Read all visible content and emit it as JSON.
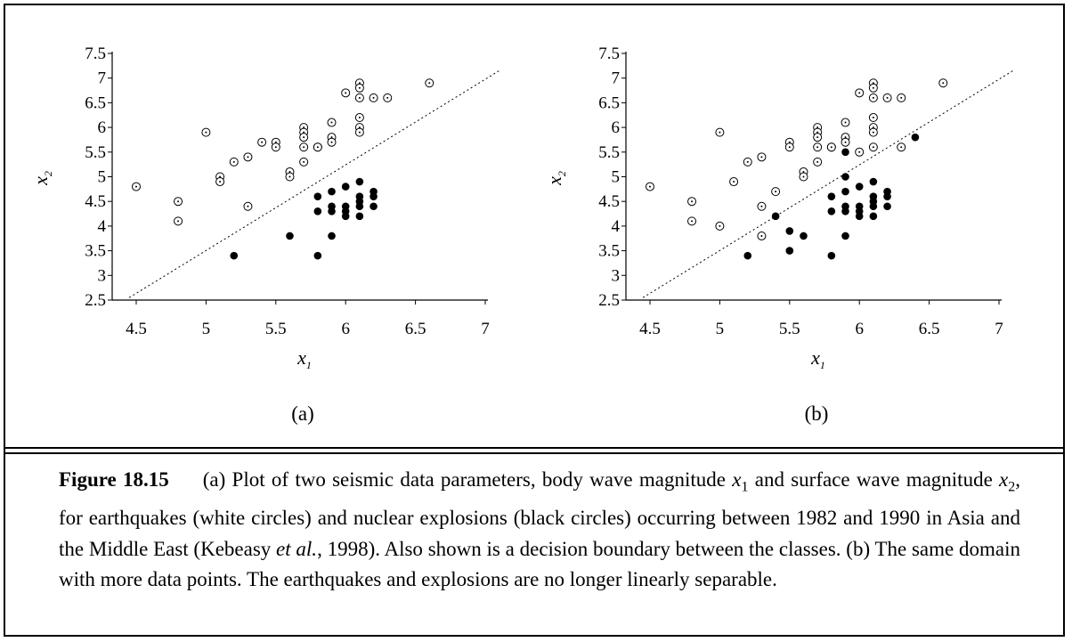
{
  "chart_data": [
    {
      "type": "scatter",
      "panel_label": "(a)",
      "xlim": [
        4.5,
        7
      ],
      "ylim": [
        2.5,
        7.5
      ],
      "xticks": [
        "4.5",
        "5",
        "5.5",
        "6",
        "6.5",
        "7"
      ],
      "yticks": [
        "2.5",
        "3",
        "3.5",
        "4",
        "4.5",
        "5",
        "5.5",
        "6",
        "6.5",
        "7",
        "7.5"
      ],
      "xlabel": "x",
      "xlabel_sub": "1",
      "ylabel": "x",
      "ylabel_sub": "2",
      "grid": false,
      "boundary": {
        "style": "dotted",
        "from": [
          4.45,
          2.55
        ],
        "to": [
          7.1,
          7.15
        ]
      },
      "series": [
        {
          "marker": "open-circle-dot",
          "points": [
            [
              4.5,
              4.8
            ],
            [
              4.8,
              4.5
            ],
            [
              4.8,
              4.1
            ],
            [
              5.0,
              5.9
            ],
            [
              5.1,
              5.0
            ],
            [
              5.1,
              4.9
            ],
            [
              5.2,
              5.3
            ],
            [
              5.3,
              5.4
            ],
            [
              5.3,
              4.4
            ],
            [
              5.4,
              5.7
            ],
            [
              5.5,
              5.7
            ],
            [
              5.5,
              5.6
            ],
            [
              5.6,
              5.1
            ],
            [
              5.6,
              5.0
            ],
            [
              5.7,
              6.0
            ],
            [
              5.7,
              5.9
            ],
            [
              5.7,
              5.8
            ],
            [
              5.7,
              5.6
            ],
            [
              5.7,
              5.3
            ],
            [
              5.8,
              5.6
            ],
            [
              5.8,
              5.6
            ],
            [
              5.9,
              6.1
            ],
            [
              5.9,
              5.8
            ],
            [
              5.9,
              5.7
            ],
            [
              6.0,
              6.7
            ],
            [
              6.1,
              6.9
            ],
            [
              6.1,
              6.8
            ],
            [
              6.1,
              6.6
            ],
            [
              6.1,
              6.2
            ],
            [
              6.1,
              6.0
            ],
            [
              6.1,
              5.9
            ],
            [
              6.2,
              6.6
            ],
            [
              6.3,
              6.6
            ],
            [
              6.6,
              6.9
            ]
          ]
        },
        {
          "marker": "filled-circle",
          "points": [
            [
              5.2,
              3.4
            ],
            [
              5.6,
              3.8
            ],
            [
              5.8,
              3.4
            ],
            [
              5.8,
              4.6
            ],
            [
              5.8,
              4.3
            ],
            [
              5.9,
              4.7
            ],
            [
              5.9,
              4.4
            ],
            [
              5.9,
              4.3
            ],
            [
              5.9,
              3.8
            ],
            [
              6.0,
              4.8
            ],
            [
              6.0,
              4.4
            ],
            [
              6.0,
              4.3
            ],
            [
              6.0,
              4.2
            ],
            [
              6.1,
              4.9
            ],
            [
              6.1,
              4.6
            ],
            [
              6.1,
              4.5
            ],
            [
              6.1,
              4.4
            ],
            [
              6.1,
              4.2
            ],
            [
              6.2,
              4.7
            ],
            [
              6.2,
              4.6
            ],
            [
              6.2,
              4.4
            ]
          ]
        }
      ]
    },
    {
      "type": "scatter",
      "panel_label": "(b)",
      "xlim": [
        4.5,
        7
      ],
      "ylim": [
        2.5,
        7.5
      ],
      "xticks": [
        "4.5",
        "5",
        "5.5",
        "6",
        "6.5",
        "7"
      ],
      "yticks": [
        "2.5",
        "3",
        "3.5",
        "4",
        "4.5",
        "5",
        "5.5",
        "6",
        "6.5",
        "7",
        "7.5"
      ],
      "xlabel": "x",
      "xlabel_sub": "1",
      "ylabel": "x",
      "ylabel_sub": "2",
      "grid": false,
      "boundary": {
        "style": "dotted",
        "from": [
          4.45,
          2.55
        ],
        "to": [
          7.1,
          7.15
        ]
      },
      "series": [
        {
          "marker": "open-circle-dot",
          "points": [
            [
              4.5,
              4.8
            ],
            [
              4.8,
              4.5
            ],
            [
              4.8,
              4.1
            ],
            [
              5.0,
              5.9
            ],
            [
              5.0,
              4.0
            ],
            [
              5.1,
              4.9
            ],
            [
              5.2,
              5.3
            ],
            [
              5.3,
              5.4
            ],
            [
              5.3,
              4.4
            ],
            [
              5.3,
              3.8
            ],
            [
              5.4,
              4.7
            ],
            [
              5.5,
              5.7
            ],
            [
              5.5,
              5.6
            ],
            [
              5.6,
              5.1
            ],
            [
              5.6,
              5.0
            ],
            [
              5.7,
              6.0
            ],
            [
              5.7,
              5.9
            ],
            [
              5.7,
              5.8
            ],
            [
              5.7,
              5.6
            ],
            [
              5.7,
              5.3
            ],
            [
              5.8,
              5.6
            ],
            [
              5.8,
              5.6
            ],
            [
              5.9,
              6.1
            ],
            [
              5.9,
              5.8
            ],
            [
              5.9,
              5.7
            ],
            [
              6.0,
              6.7
            ],
            [
              6.0,
              5.5
            ],
            [
              6.1,
              6.9
            ],
            [
              6.1,
              6.8
            ],
            [
              6.1,
              6.6
            ],
            [
              6.1,
              6.2
            ],
            [
              6.1,
              6.0
            ],
            [
              6.1,
              5.9
            ],
            [
              6.1,
              5.6
            ],
            [
              6.2,
              6.6
            ],
            [
              6.3,
              6.6
            ],
            [
              6.3,
              5.6
            ],
            [
              6.6,
              6.9
            ]
          ]
        },
        {
          "marker": "filled-circle",
          "points": [
            [
              5.2,
              3.4
            ],
            [
              5.4,
              4.2
            ],
            [
              5.5,
              3.9
            ],
            [
              5.5,
              3.5
            ],
            [
              5.6,
              3.8
            ],
            [
              5.8,
              3.4
            ],
            [
              5.8,
              4.6
            ],
            [
              5.8,
              4.3
            ],
            [
              5.9,
              5.5
            ],
            [
              5.9,
              5.0
            ],
            [
              5.9,
              4.7
            ],
            [
              5.9,
              4.4
            ],
            [
              5.9,
              4.3
            ],
            [
              5.9,
              3.8
            ],
            [
              6.0,
              4.8
            ],
            [
              6.0,
              4.4
            ],
            [
              6.0,
              4.3
            ],
            [
              6.0,
              4.2
            ],
            [
              6.1,
              4.9
            ],
            [
              6.1,
              4.6
            ],
            [
              6.1,
              4.5
            ],
            [
              6.1,
              4.4
            ],
            [
              6.1,
              4.2
            ],
            [
              6.2,
              4.7
            ],
            [
              6.2,
              4.6
            ],
            [
              6.2,
              4.4
            ],
            [
              6.4,
              5.8
            ]
          ]
        }
      ]
    }
  ],
  "caption": {
    "title": "Figure 18.15",
    "t1": "(a) Plot of two seismic data parameters, body wave magnitude ",
    "m1": "x",
    "m1_sub": "1",
    "t2": " and surface wave magnitude ",
    "m2": "x",
    "m2_sub": "2",
    "t3": ", for earthquakes (white circles) and nuclear explosions (black circles) occurring between 1982 and 1990 in Asia and the Middle East (Kebeasy ",
    "etal": "et al.",
    "t4": ", 1998). Also shown is a decision boundary between the classes. (b) The same domain with more data points. The earthquakes and explosions are no longer linearly separable."
  }
}
